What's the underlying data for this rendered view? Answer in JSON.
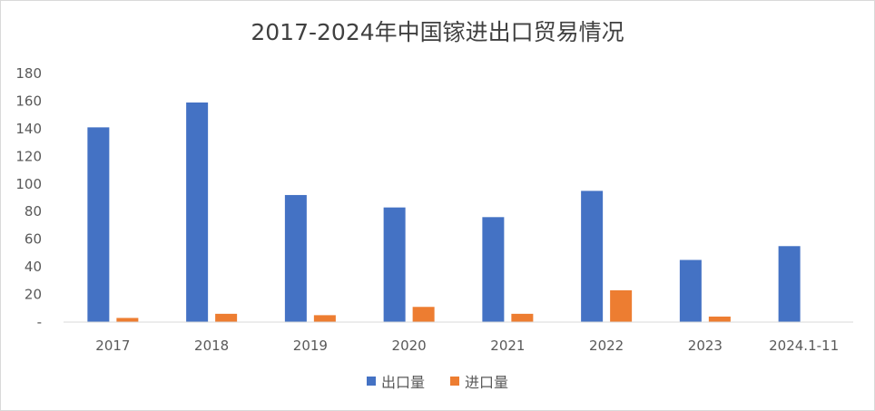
{
  "chart_data": {
    "type": "bar",
    "title": "2017-2024年中国镓进出口贸易情况",
    "categories": [
      "2017",
      "2018",
      "2019",
      "2020",
      "2021",
      "2022",
      "2023",
      "2024.1-11"
    ],
    "series": [
      {
        "name": "出口量",
        "color": "#4472c4",
        "values": [
          141,
          159,
          92,
          83,
          76,
          95,
          45,
          55
        ]
      },
      {
        "name": "进口量",
        "color": "#ed7d31",
        "values": [
          3,
          6,
          5,
          11,
          6,
          23,
          4,
          null
        ]
      }
    ],
    "yticks": [
      "-",
      "20",
      "40",
      "60",
      "80",
      "100",
      "120",
      "140",
      "160",
      "180"
    ],
    "ylim": [
      0,
      180
    ],
    "grid": false,
    "legend_position": "bottom"
  }
}
